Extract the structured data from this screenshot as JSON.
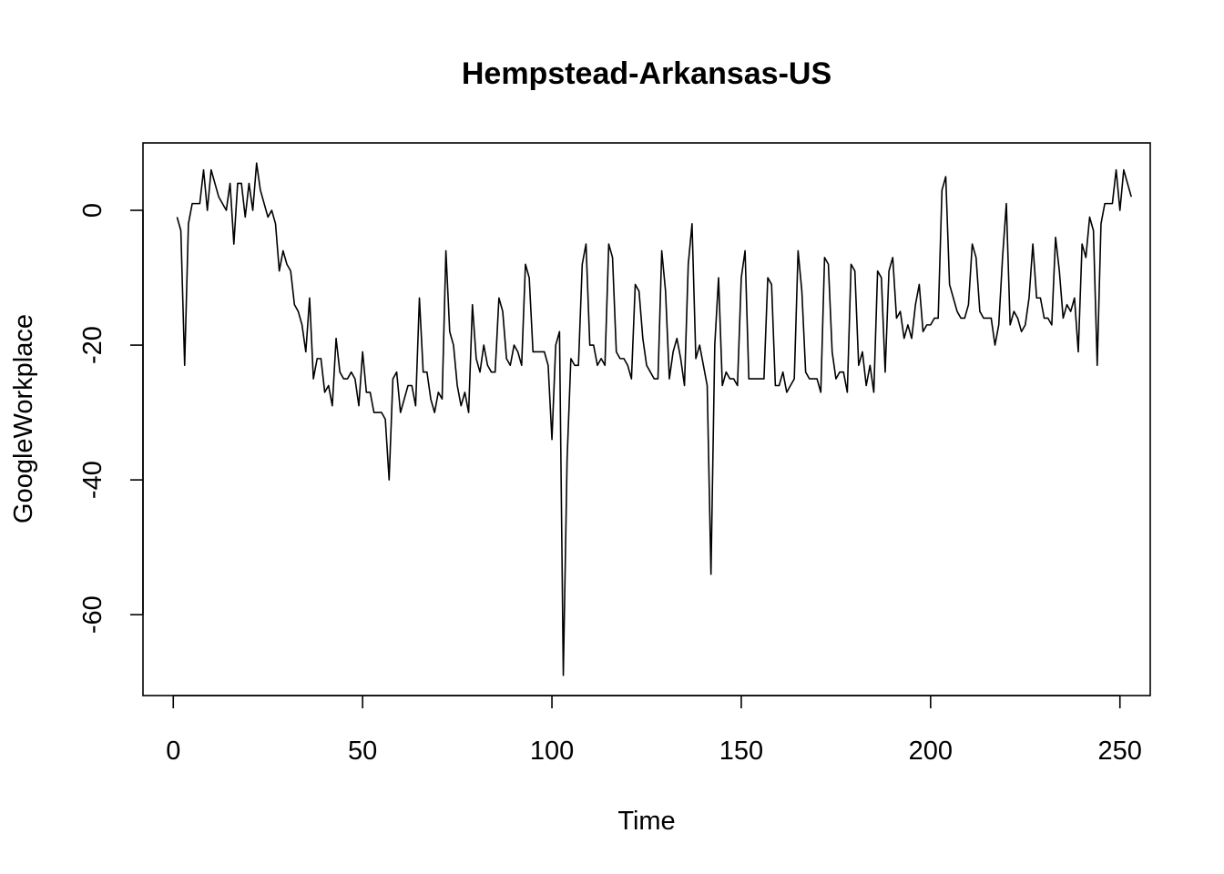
{
  "chart_data": {
    "type": "line",
    "title": "Hempstead-Arkansas-US",
    "xlabel": "Time",
    "ylabel": "GoogleWorkplace",
    "xlim": [
      -8,
      258
    ],
    "ylim": [
      -72,
      10
    ],
    "x_ticks": [
      0,
      50,
      100,
      150,
      200,
      250
    ],
    "x_tick_labels": [
      "0",
      "50",
      "100",
      "150",
      "200",
      "250"
    ],
    "y_ticks": [
      -60,
      -40,
      -20,
      0
    ],
    "y_tick_labels": [
      "-60",
      "-40",
      "-20",
      "0"
    ],
    "grid": false,
    "legend": "none",
    "series": [
      {
        "x_start": 1,
        "values": [
          -1,
          -3,
          -23,
          -2,
          1,
          1,
          1,
          6,
          0,
          6,
          4,
          2,
          1,
          0,
          4,
          -5,
          4,
          4,
          -1,
          4,
          0,
          7,
          3,
          1,
          -1,
          0,
          -2,
          -9,
          -6,
          -8,
          -9,
          -14,
          -15,
          -17,
          -21,
          -13,
          -25,
          -22,
          -22,
          -27,
          -26,
          -29,
          -19,
          -24,
          -25,
          -25,
          -24,
          -25,
          -29,
          -21,
          -27,
          -27,
          -30,
          -30,
          -30,
          -31,
          -40,
          -25,
          -24,
          -30,
          -28,
          -26,
          -26,
          -29,
          -13,
          -24,
          -24,
          -28,
          -30,
          -27,
          -28,
          -6,
          -18,
          -20,
          -26,
          -29,
          -27,
          -30,
          -14,
          -22,
          -24,
          -20,
          -23,
          -24,
          -24,
          -13,
          -15,
          -22,
          -23,
          -20,
          -21,
          -23,
          -8,
          -10,
          -21,
          -21,
          -21,
          -21,
          -23,
          -34,
          -20,
          -18,
          -69,
          -37,
          -22,
          -23,
          -23,
          -8,
          -5,
          -20,
          -20,
          -23,
          -22,
          -23,
          -5,
          -7,
          -21,
          -22,
          -22,
          -23,
          -25,
          -11,
          -12,
          -19,
          -23,
          -24,
          -25,
          -25,
          -6,
          -12,
          -25,
          -21,
          -19,
          -22,
          -26,
          -8,
          -2,
          -22,
          -20,
          -23,
          -26,
          -54,
          -20,
          -10,
          -26,
          -24,
          -25,
          -25,
          -26,
          -10,
          -6,
          -25,
          -25,
          -25,
          -25,
          -25,
          -10,
          -11,
          -26,
          -26,
          -24,
          -27,
          -26,
          -25,
          -6,
          -12,
          -24,
          -25,
          -25,
          -25,
          -27,
          -7,
          -8,
          -21,
          -25,
          -24,
          -24,
          -27,
          -8,
          -9,
          -23,
          -21,
          -26,
          -23,
          -27,
          -9,
          -10,
          -24,
          -9,
          -7,
          -16,
          -15,
          -19,
          -17,
          -19,
          -14,
          -11,
          -18,
          -17,
          -17,
          -16,
          -16,
          3,
          5,
          -11,
          -13,
          -15,
          -16,
          -16,
          -14,
          -5,
          -7,
          -15,
          -16,
          -16,
          -16,
          -20,
          -17,
          -7,
          1,
          -17,
          -15,
          -16,
          -18,
          -17,
          -13,
          -5,
          -13,
          -13,
          -16,
          -16,
          -17,
          -4,
          -9,
          -16,
          -14,
          -15,
          -13,
          -21,
          -5,
          -7,
          -1,
          -3,
          -23,
          -2,
          1,
          1,
          1,
          6,
          0,
          6,
          4,
          2
        ]
      }
    ]
  }
}
